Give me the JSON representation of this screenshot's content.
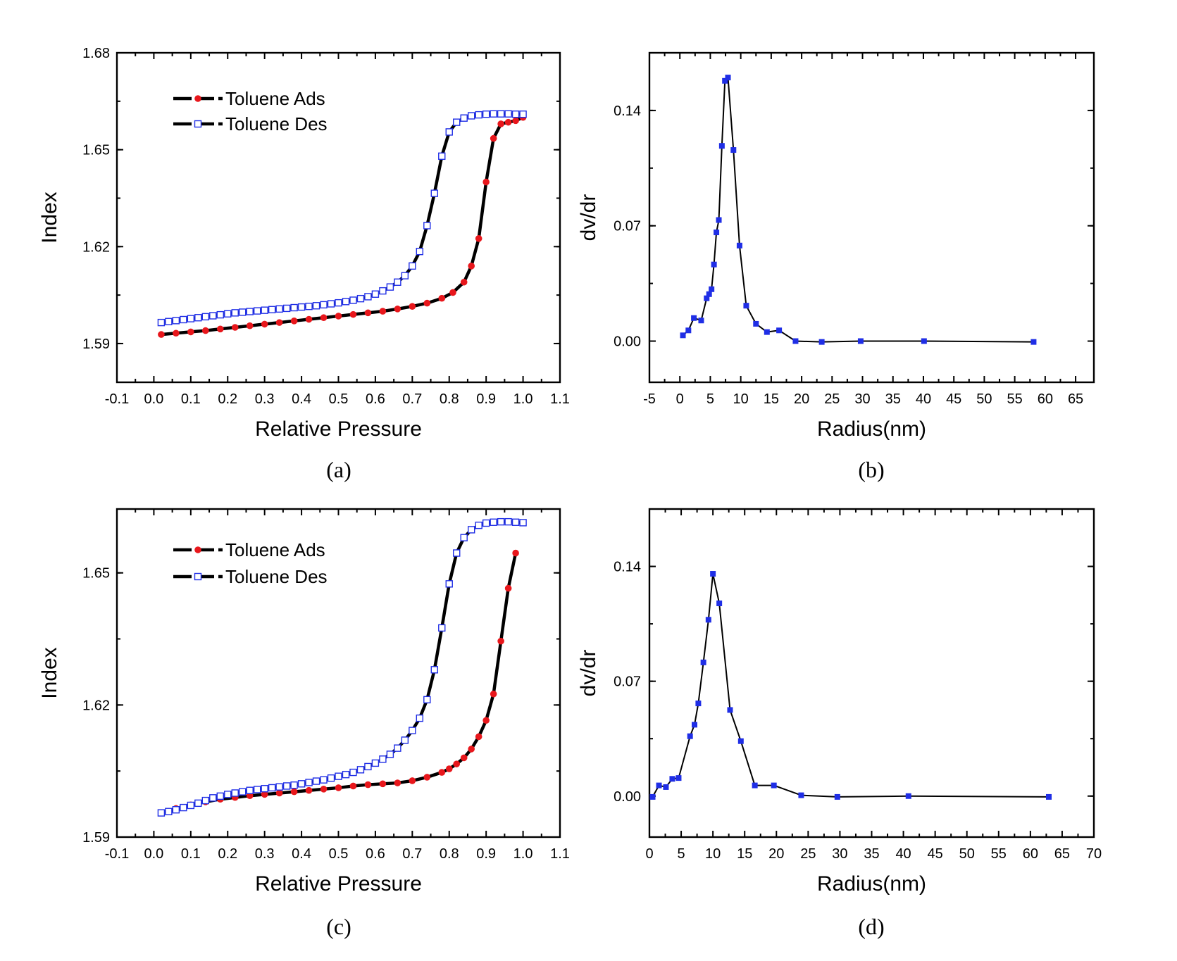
{
  "chart_data": [
    {
      "id": "a",
      "type": "scatter",
      "caption": "(a)",
      "xlabel": "Relative Pressure",
      "ylabel": "Index",
      "xlim": [
        -0.1,
        1.1
      ],
      "ylim": [
        1.578,
        1.68
      ],
      "xticks": [
        -0.1,
        0.0,
        0.1,
        0.2,
        0.3,
        0.4,
        0.5,
        0.6,
        0.7,
        0.8,
        0.9,
        1.0,
        1.1
      ],
      "xtick_labels": [
        "-0.1",
        "0.0",
        "0.1",
        "0.2",
        "0.3",
        "0.4",
        "0.5",
        "0.6",
        "0.7",
        "0.8",
        "0.9",
        "1.0",
        "1.1"
      ],
      "yticks": [
        1.59,
        1.62,
        1.65,
        1.68
      ],
      "ytick_labels": [
        "1.59",
        "1.62",
        "1.65",
        "1.68"
      ],
      "legend": "top-left",
      "series": [
        {
          "name": "Toluene Ads",
          "color": "#e8171c",
          "marker": "filled-circle",
          "x": [
            0.02,
            0.06,
            0.1,
            0.14,
            0.18,
            0.22,
            0.26,
            0.3,
            0.34,
            0.38,
            0.42,
            0.46,
            0.5,
            0.54,
            0.58,
            0.62,
            0.66,
            0.7,
            0.74,
            0.78,
            0.81,
            0.84,
            0.86,
            0.88,
            0.9,
            0.92,
            0.94,
            0.96,
            0.98,
            1.0
          ],
          "y": [
            1.5928,
            1.5932,
            1.5936,
            1.594,
            1.5945,
            1.595,
            1.5955,
            1.596,
            1.5965,
            1.597,
            1.5975,
            1.598,
            1.5985,
            1.599,
            1.5995,
            1.6,
            1.6007,
            1.6015,
            1.6025,
            1.604,
            1.6058,
            1.609,
            1.614,
            1.6225,
            1.64,
            1.6535,
            1.658,
            1.6585,
            1.659,
            1.66
          ]
        },
        {
          "name": "Toluene Des",
          "color": "#1f2ee6",
          "marker": "open-square",
          "x": [
            0.02,
            0.04,
            0.06,
            0.08,
            0.1,
            0.12,
            0.14,
            0.16,
            0.18,
            0.2,
            0.22,
            0.24,
            0.26,
            0.28,
            0.3,
            0.32,
            0.34,
            0.36,
            0.38,
            0.4,
            0.42,
            0.44,
            0.46,
            0.48,
            0.5,
            0.52,
            0.54,
            0.56,
            0.58,
            0.6,
            0.62,
            0.64,
            0.66,
            0.68,
            0.7,
            0.72,
            0.74,
            0.76,
            0.78,
            0.8,
            0.82,
            0.84,
            0.86,
            0.88,
            0.9,
            0.92,
            0.94,
            0.96,
            0.98,
            1.0
          ],
          "y": [
            1.5965,
            1.5968,
            1.5971,
            1.5974,
            1.5977,
            1.598,
            1.5983,
            1.5986,
            1.5989,
            1.5992,
            1.5995,
            1.5997,
            1.5999,
            1.6001,
            1.6003,
            1.6005,
            1.6007,
            1.6009,
            1.6011,
            1.6013,
            1.6015,
            1.6017,
            1.602,
            1.6023,
            1.6026,
            1.603,
            1.6034,
            1.6039,
            1.6045,
            1.6053,
            1.6063,
            1.6075,
            1.609,
            1.611,
            1.614,
            1.6185,
            1.6265,
            1.6365,
            1.648,
            1.6555,
            1.6585,
            1.6598,
            1.6605,
            1.6608,
            1.661,
            1.6611,
            1.6611,
            1.6611,
            1.661,
            1.661
          ]
        }
      ]
    },
    {
      "id": "b",
      "type": "line",
      "caption": "(b)",
      "xlabel": "Radius(nm)",
      "ylabel": "dv/dr",
      "xlim": [
        -5,
        68
      ],
      "ylim": [
        -0.025,
        0.175
      ],
      "xticks": [
        -5,
        0,
        5,
        10,
        15,
        20,
        25,
        30,
        35,
        40,
        45,
        50,
        55,
        60,
        65
      ],
      "xtick_labels": [
        "-5",
        "0",
        "5",
        "10",
        "15",
        "20",
        "25",
        "30",
        "35",
        "40",
        "45",
        "50",
        "55",
        "60",
        "65"
      ],
      "yticks": [
        0.0,
        0.07,
        0.14
      ],
      "ytick_labels": [
        "0.00",
        "0.07",
        "0.14"
      ],
      "series": [
        {
          "name": "dv/dr",
          "color": "#1f2ee6",
          "marker": "filled-square",
          "x": [
            0.5,
            1.4,
            2.3,
            3.5,
            4.4,
            4.8,
            5.2,
            5.6,
            6.0,
            6.4,
            6.9,
            7.4,
            7.9,
            8.8,
            9.8,
            10.9,
            12.5,
            14.3,
            16.3,
            19.0,
            23.3,
            29.7,
            40.1,
            58.1
          ],
          "y": [
            0.0035,
            0.0065,
            0.014,
            0.0125,
            0.026,
            0.0285,
            0.0315,
            0.0465,
            0.066,
            0.0735,
            0.1185,
            0.158,
            0.16,
            0.116,
            0.058,
            0.0215,
            0.0105,
            0.0055,
            0.0065,
            0.0,
            -0.0005,
            0.0,
            0.0,
            -0.0005
          ]
        }
      ]
    },
    {
      "id": "c",
      "type": "scatter",
      "caption": "(c)",
      "xlabel": "Relative Pressure",
      "ylabel": "Index",
      "xlim": [
        -0.1,
        1.1
      ],
      "ylim": [
        1.59,
        1.6645
      ],
      "xticks": [
        -0.1,
        0.0,
        0.1,
        0.2,
        0.3,
        0.4,
        0.5,
        0.6,
        0.7,
        0.8,
        0.9,
        1.0,
        1.1
      ],
      "xtick_labels": [
        "-0.1",
        "0.0",
        "0.1",
        "0.2",
        "0.3",
        "0.4",
        "0.5",
        "0.6",
        "0.7",
        "0.8",
        "0.9",
        "1.0",
        "1.1"
      ],
      "yticks": [
        1.59,
        1.62,
        1.65
      ],
      "ytick_labels": [
        "1.59",
        "1.62",
        "1.65"
      ],
      "legend": "top-left",
      "series": [
        {
          "name": "Toluene Ads",
          "color": "#e8171c",
          "marker": "filled-circle",
          "x": [
            0.02,
            0.06,
            0.1,
            0.14,
            0.18,
            0.22,
            0.26,
            0.3,
            0.34,
            0.38,
            0.42,
            0.46,
            0.5,
            0.54,
            0.58,
            0.62,
            0.66,
            0.7,
            0.74,
            0.78,
            0.8,
            0.82,
            0.84,
            0.86,
            0.88,
            0.9,
            0.92,
            0.94,
            0.96,
            0.98
          ],
          "y": [
            1.5955,
            1.5965,
            1.5973,
            1.598,
            1.5986,
            1.599,
            1.5994,
            1.5997,
            1.6,
            1.6003,
            1.6006,
            1.6009,
            1.6012,
            1.6016,
            1.6019,
            1.6021,
            1.6023,
            1.6028,
            1.6036,
            1.6047,
            1.6055,
            1.6066,
            1.608,
            1.61,
            1.6128,
            1.6165,
            1.6225,
            1.6345,
            1.6465,
            1.6545
          ]
        },
        {
          "name": "Toluene Des",
          "color": "#1f2ee6",
          "marker": "open-square",
          "x": [
            0.02,
            0.04,
            0.06,
            0.08,
            0.1,
            0.12,
            0.14,
            0.16,
            0.18,
            0.2,
            0.22,
            0.24,
            0.26,
            0.28,
            0.3,
            0.32,
            0.34,
            0.36,
            0.38,
            0.4,
            0.42,
            0.44,
            0.46,
            0.48,
            0.5,
            0.52,
            0.54,
            0.56,
            0.58,
            0.6,
            0.62,
            0.64,
            0.66,
            0.68,
            0.7,
            0.72,
            0.74,
            0.76,
            0.78,
            0.8,
            0.82,
            0.84,
            0.86,
            0.88,
            0.9,
            0.92,
            0.94,
            0.96,
            0.98,
            1.0
          ],
          "y": [
            1.5955,
            1.5958,
            1.5962,
            1.5967,
            1.5972,
            1.5977,
            1.5983,
            1.5989,
            1.5993,
            1.5997,
            1.6,
            1.6003,
            1.6006,
            1.6008,
            1.601,
            1.6012,
            1.6014,
            1.6016,
            1.6018,
            1.6021,
            1.6024,
            1.6027,
            1.603,
            1.6034,
            1.6038,
            1.6042,
            1.6047,
            1.6053,
            1.606,
            1.6068,
            1.6077,
            1.6088,
            1.6102,
            1.612,
            1.6142,
            1.617,
            1.6212,
            1.628,
            1.6375,
            1.6475,
            1.6545,
            1.658,
            1.6598,
            1.6608,
            1.6613,
            1.6615,
            1.6616,
            1.6616,
            1.6615,
            1.6614
          ]
        }
      ]
    },
    {
      "id": "d",
      "type": "line",
      "caption": "(d)",
      "xlabel": "Radius(nm)",
      "ylabel": "dv/dr",
      "xlim": [
        0,
        70
      ],
      "ylim": [
        -0.025,
        0.175
      ],
      "xticks": [
        0,
        5,
        10,
        15,
        20,
        25,
        30,
        35,
        40,
        45,
        50,
        55,
        60,
        65,
        70
      ],
      "xtick_labels": [
        "0",
        "5",
        "10",
        "15",
        "20",
        "25",
        "30",
        "35",
        "40",
        "45",
        "50",
        "55",
        "60",
        "65",
        "70"
      ],
      "yticks": [
        0.0,
        0.07,
        0.14
      ],
      "ytick_labels": [
        "0.00",
        "0.07",
        "0.14"
      ],
      "series": [
        {
          "name": "dv/dr",
          "color": "#1f2ee6",
          "marker": "filled-square",
          "x": [
            0.5,
            1.5,
            2.6,
            3.6,
            4.6,
            6.4,
            7.1,
            7.7,
            8.5,
            9.3,
            10.0,
            11.0,
            12.7,
            14.4,
            16.6,
            19.6,
            23.9,
            29.6,
            40.8,
            62.9
          ],
          "y": [
            -0.0005,
            0.0065,
            0.0055,
            0.0105,
            0.011,
            0.0365,
            0.0435,
            0.0565,
            0.0815,
            0.1075,
            0.1355,
            0.1175,
            0.0525,
            0.0335,
            0.0065,
            0.0065,
            0.0005,
            -0.0005,
            0.0,
            -0.0005
          ]
        }
      ]
    }
  ]
}
